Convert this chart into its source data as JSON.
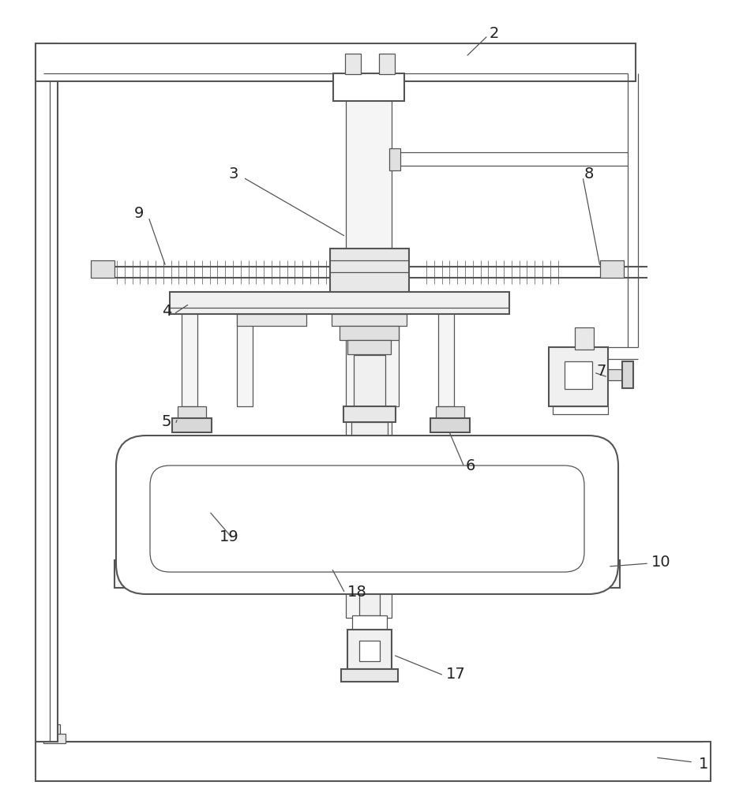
{
  "bg_color": "#ffffff",
  "lc": "#555555",
  "lw": 1.5,
  "tlw": 0.9
}
